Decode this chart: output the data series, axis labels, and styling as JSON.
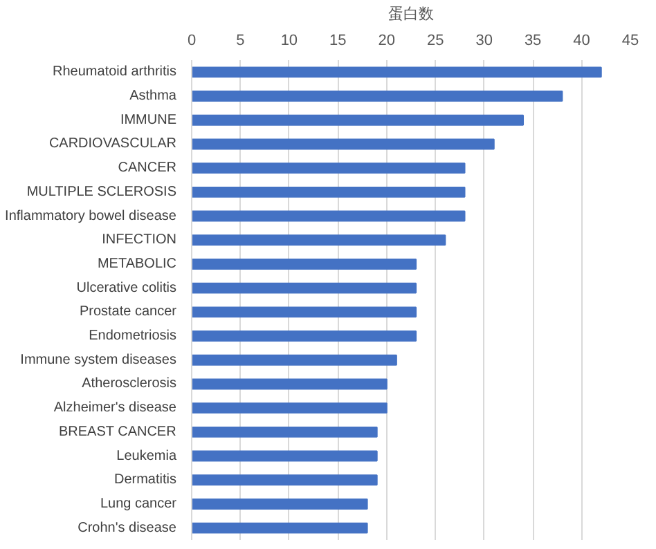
{
  "chart_data": {
    "type": "bar",
    "orientation": "horizontal",
    "xlabel": "蛋白数",
    "categories": [
      "Rheumatoid arthritis",
      "Asthma",
      "IMMUNE",
      "CARDIOVASCULAR",
      "CANCER",
      "MULTIPLE SCLEROSIS",
      "Inflammatory bowel disease",
      "INFECTION",
      "METABOLIC",
      "Ulcerative colitis",
      "Prostate cancer",
      "Endometriosis",
      "Immune system diseases",
      "Atherosclerosis",
      "Alzheimer's disease",
      "BREAST CANCER",
      "Leukemia",
      "Dermatitis",
      "Lung cancer",
      "Crohn's disease"
    ],
    "values": [
      42,
      38,
      34,
      31,
      28,
      28,
      28,
      26,
      23,
      23,
      23,
      23,
      21,
      20,
      20,
      19,
      19,
      19,
      18,
      18
    ],
    "color": "#4472c4",
    "xlim": [
      0,
      45
    ],
    "xticks": [
      0,
      5,
      10,
      15,
      20,
      25,
      30,
      35,
      40,
      45
    ],
    "grid": "x"
  }
}
